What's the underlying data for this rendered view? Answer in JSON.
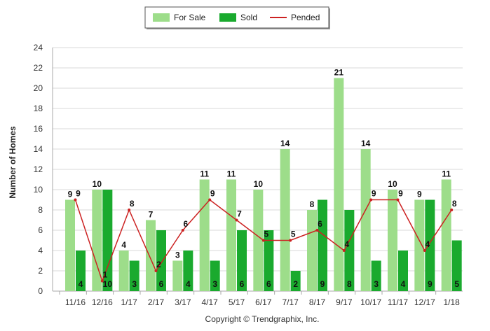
{
  "chart_data": {
    "type": "bar",
    "categories": [
      "11/16",
      "12/16",
      "1/17",
      "2/17",
      "3/17",
      "4/17",
      "5/17",
      "6/17",
      "7/17",
      "8/17",
      "9/17",
      "10/17",
      "11/17",
      "12/17",
      "1/18"
    ],
    "series": [
      {
        "name": "For Sale",
        "type": "bar",
        "color": "#9ddd8a",
        "values": [
          9,
          10,
          4,
          7,
          3,
          11,
          11,
          10,
          14,
          8,
          21,
          14,
          10,
          9,
          11
        ]
      },
      {
        "name": "Sold",
        "type": "bar",
        "color": "#1aaa2e",
        "values": [
          4,
          10,
          3,
          6,
          4,
          3,
          6,
          6,
          2,
          9,
          8,
          3,
          4,
          9,
          5
        ]
      },
      {
        "name": "Pended",
        "type": "line",
        "color": "#cc2222",
        "values": [
          9,
          1,
          8,
          2,
          6,
          9,
          7,
          5,
          5,
          6,
          4,
          9,
          9,
          4,
          8
        ]
      }
    ],
    "title": "",
    "xlabel": "",
    "ylabel": "Number of Homes",
    "ylim": [
      0,
      24
    ],
    "yticks": [
      0,
      2,
      4,
      6,
      8,
      10,
      12,
      14,
      16,
      18,
      20,
      22,
      24
    ],
    "grid": true,
    "legend_position": "top-center",
    "footer": "Copyright © Trendgraphix, Inc."
  }
}
